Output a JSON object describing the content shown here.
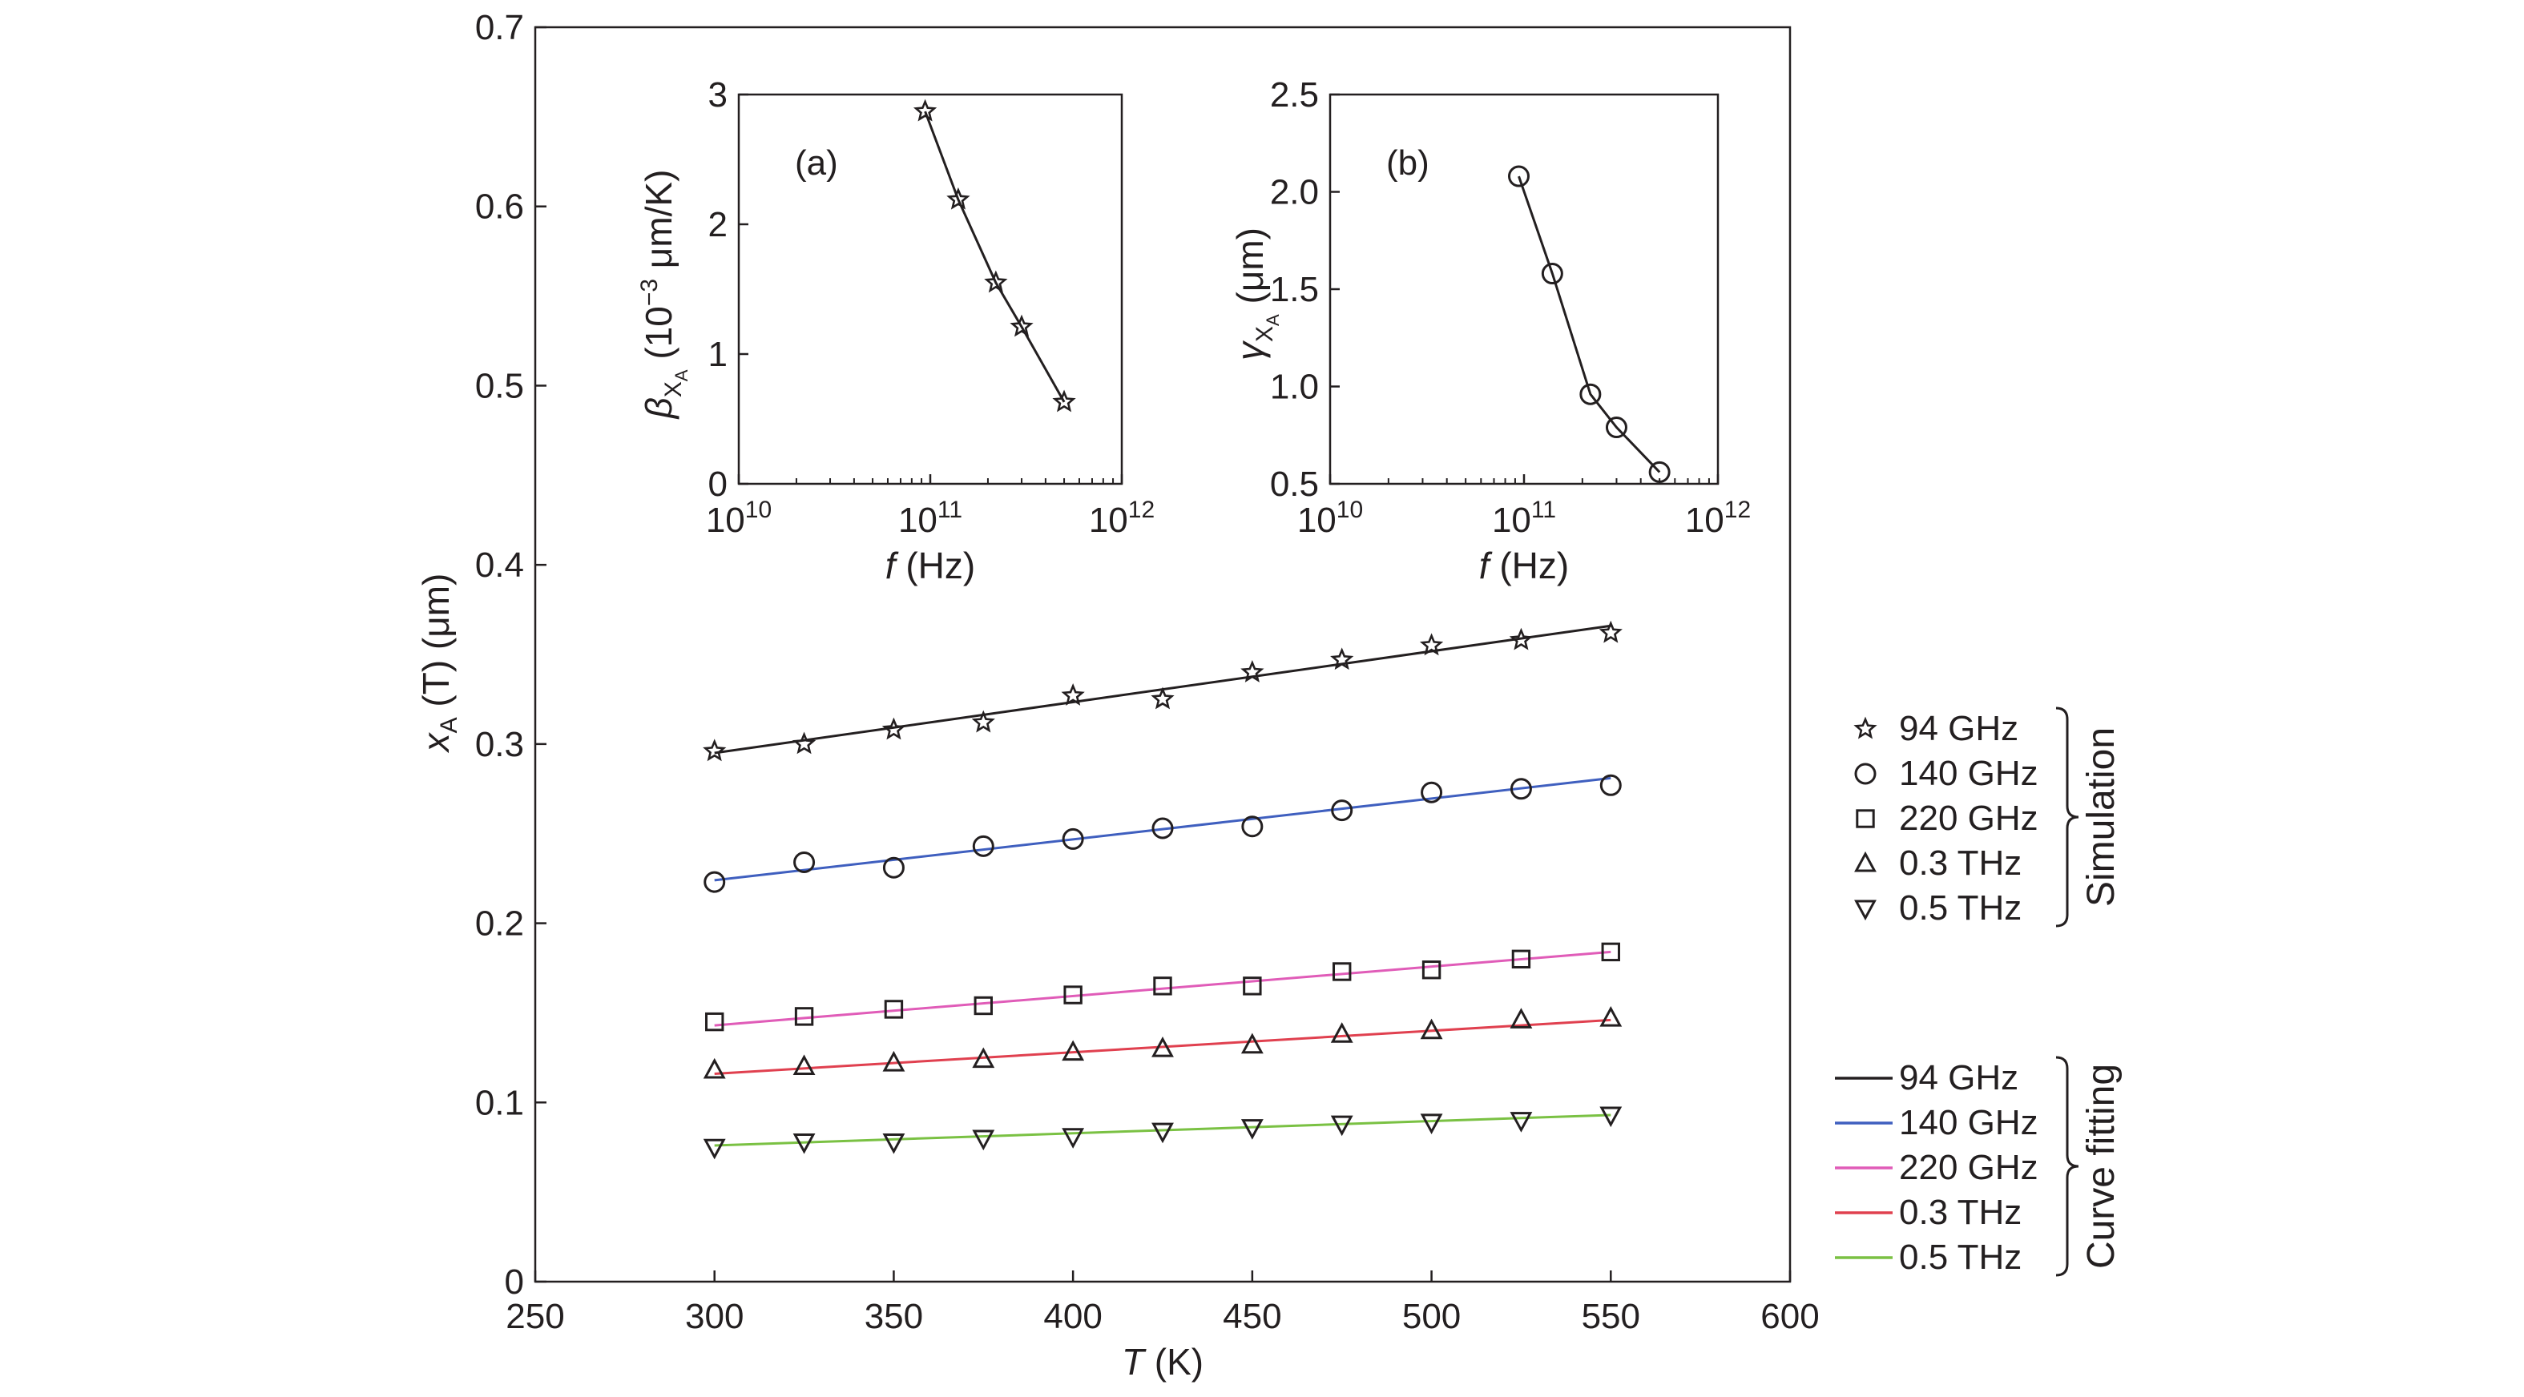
{
  "chart_data": [
    {
      "id": "main",
      "type": "scatter",
      "title": "",
      "xlabel": {
        "var": "T",
        "unit": " (K)"
      },
      "ylabel": {
        "var": "x",
        "sub": "A",
        "rest": " (T) (μm)"
      },
      "xlim": [
        250,
        600
      ],
      "ylim": [
        0,
        0.7
      ],
      "xticks": [
        250,
        300,
        350,
        400,
        450,
        500,
        550,
        600
      ],
      "yticks": [
        0,
        0.1,
        0.2,
        0.3,
        0.4,
        0.5,
        0.6,
        0.7
      ],
      "ytick_labels": [
        "0",
        "0.1",
        "0.2",
        "0.3",
        "0.4",
        "0.5",
        "0.6",
        "0.7"
      ],
      "x": [
        300,
        325,
        350,
        375,
        400,
        425,
        450,
        475,
        500,
        525,
        550
      ],
      "series": [
        {
          "name": "94 GHz",
          "marker": "star",
          "color": "#231f20",
          "values": [
            0.296,
            0.3,
            0.308,
            0.312,
            0.327,
            0.325,
            0.34,
            0.347,
            0.355,
            0.358,
            0.362
          ],
          "fit": [
            0.295,
            0.366
          ]
        },
        {
          "name": "140 GHz",
          "marker": "circle",
          "color": "#3f5fbf",
          "values": [
            0.223,
            0.234,
            0.231,
            0.243,
            0.247,
            0.253,
            0.254,
            0.263,
            0.273,
            0.275,
            0.277
          ],
          "fit": [
            0.224,
            0.281
          ]
        },
        {
          "name": "220 GHz",
          "marker": "square",
          "color": "#e05cb8",
          "values": [
            0.145,
            0.148,
            0.152,
            0.154,
            0.16,
            0.165,
            0.165,
            0.173,
            0.174,
            0.18,
            0.184
          ],
          "fit": [
            0.143,
            0.184
          ]
        },
        {
          "name": "0.3 THz",
          "marker": "triangle-up",
          "color": "#e0404f",
          "values": [
            0.118,
            0.12,
            0.122,
            0.124,
            0.128,
            0.13,
            0.132,
            0.138,
            0.14,
            0.146,
            0.147
          ],
          "fit": [
            0.116,
            0.146
          ]
        },
        {
          "name": "0.5 THz",
          "marker": "triangle-down",
          "color": "#7ac143",
          "values": [
            0.075,
            0.078,
            0.078,
            0.08,
            0.081,
            0.084,
            0.086,
            0.088,
            0.089,
            0.09,
            0.093
          ],
          "fit": [
            0.076,
            0.093
          ]
        }
      ],
      "legend_simulation": {
        "title": "Simulation",
        "position": "right-middle",
        "entries": [
          "94 GHz",
          "140 GHz",
          "220 GHz",
          "0.3 THz",
          "0.5 THz"
        ]
      },
      "legend_fitting": {
        "title": "Curve fitting",
        "position": "right-bottom",
        "entries": [
          "94 GHz",
          "140 GHz",
          "220 GHz",
          "0.3 THz",
          "0.5 THz"
        ]
      }
    },
    {
      "id": "inset_a",
      "type": "line",
      "panel_label": "(a)",
      "xscale": "log",
      "xlim": [
        10000000000,
        1000000000000
      ],
      "ylim": [
        0,
        3
      ],
      "yticks": [
        0,
        1,
        2,
        3
      ],
      "ytick_labels": [
        "0",
        "1",
        "2",
        "3"
      ],
      "xtick_exponents": [
        "10",
        "11",
        "12"
      ],
      "xlabel": {
        "var": "f",
        "unit": " (Hz)"
      },
      "ylabel": {
        "var": "β",
        "sub": "X",
        "subsub": "A",
        "rest": " (10",
        "sup": "−3",
        "rest2": " μm/K)"
      },
      "marker": "star",
      "x": [
        94000000000,
        140000000000,
        220000000000,
        300000000000,
        500000000000
      ],
      "values": [
        2.87,
        2.19,
        1.55,
        1.21,
        0.63
      ]
    },
    {
      "id": "inset_b",
      "type": "line",
      "panel_label": "(b)",
      "xscale": "log",
      "xlim": [
        10000000000,
        1000000000000
      ],
      "ylim": [
        0.5,
        2.5
      ],
      "yticks": [
        0.5,
        1.0,
        1.5,
        2.0,
        2.5
      ],
      "ytick_labels": [
        "0.5",
        "1.0",
        "1.5",
        "2.0",
        "2.5"
      ],
      "xtick_exponents": [
        "10",
        "11",
        "12"
      ],
      "xlabel": {
        "var": "f",
        "unit": " (Hz)"
      },
      "ylabel": {
        "var": "γ",
        "sub": "X",
        "subsub": "A",
        "rest": " (μm)"
      },
      "marker": "circle",
      "x": [
        94000000000,
        140000000000,
        220000000000,
        300000000000,
        500000000000
      ],
      "values": [
        2.08,
        1.58,
        0.96,
        0.79,
        0.56
      ]
    }
  ],
  "colors": {
    "ink": "#231f20",
    "background": "#ffffff"
  }
}
